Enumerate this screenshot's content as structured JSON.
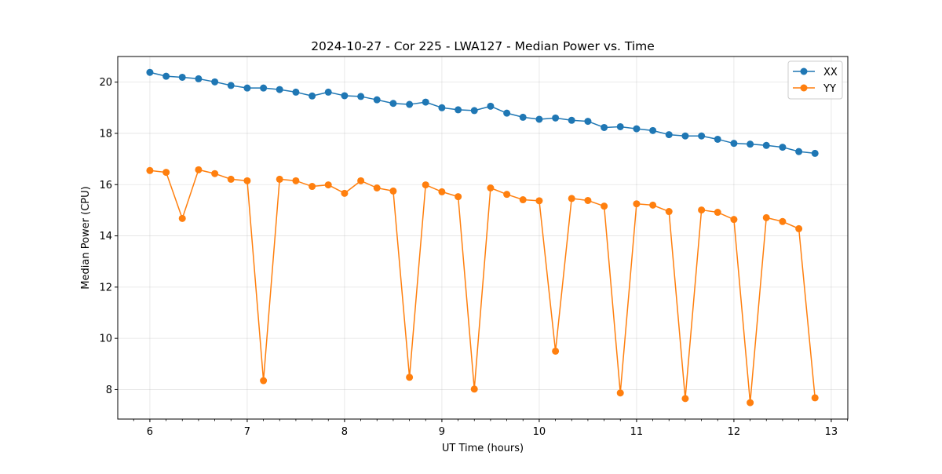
{
  "chart_data": {
    "type": "line",
    "title": "2024-10-27 - Cor 225 - LWA127 - Median Power vs. Time",
    "xlabel": "UT Time (hours)",
    "ylabel": "Median Power (CPU)",
    "xlim": [
      5.67,
      13.17
    ],
    "ylim": [
      6.85,
      21.0
    ],
    "xticks": [
      6,
      7,
      8,
      9,
      10,
      11,
      12,
      13
    ],
    "yticks": [
      8,
      10,
      12,
      14,
      16,
      18,
      20
    ],
    "grid": true,
    "legend_position": "top-right",
    "series": [
      {
        "name": "XX",
        "color": "#1f77b4",
        "x": [
          6.0,
          6.167,
          6.333,
          6.5,
          6.667,
          6.833,
          7.0,
          7.167,
          7.333,
          7.5,
          7.667,
          7.833,
          8.0,
          8.167,
          8.333,
          8.5,
          8.667,
          8.833,
          9.0,
          9.167,
          9.333,
          9.5,
          9.667,
          9.833,
          10.0,
          10.167,
          10.333,
          10.5,
          10.667,
          10.833,
          11.0,
          11.167,
          11.333,
          11.5,
          11.667,
          11.833,
          12.0,
          12.167,
          12.333,
          12.5,
          12.667,
          12.833
        ],
        "values": [
          20.38,
          20.23,
          20.19,
          20.13,
          20.01,
          19.87,
          19.77,
          19.77,
          19.71,
          19.61,
          19.46,
          19.61,
          19.47,
          19.44,
          19.31,
          19.17,
          19.13,
          19.22,
          19.0,
          18.92,
          18.89,
          19.06,
          18.79,
          18.63,
          18.55,
          18.6,
          18.51,
          18.47,
          18.23,
          18.26,
          18.18,
          18.11,
          17.95,
          17.9,
          17.9,
          17.77,
          17.61,
          17.58,
          17.53,
          17.46,
          17.29,
          17.22
        ]
      },
      {
        "name": "YY",
        "color": "#ff7f0e",
        "x": [
          6.0,
          6.167,
          6.333,
          6.5,
          6.667,
          6.833,
          7.0,
          7.167,
          7.333,
          7.5,
          7.667,
          7.833,
          8.0,
          8.167,
          8.333,
          8.5,
          8.667,
          8.833,
          9.0,
          9.167,
          9.333,
          9.5,
          9.667,
          9.833,
          10.0,
          10.167,
          10.333,
          10.5,
          10.667,
          10.833,
          11.0,
          11.167,
          11.333,
          11.5,
          11.667,
          11.833,
          12.0,
          12.167,
          12.333,
          12.5,
          12.667,
          12.833
        ],
        "values": [
          16.55,
          16.48,
          14.68,
          16.58,
          16.43,
          16.21,
          16.15,
          8.35,
          16.21,
          16.15,
          15.93,
          15.99,
          15.66,
          16.15,
          15.87,
          15.75,
          8.48,
          15.99,
          15.72,
          15.53,
          8.02,
          15.87,
          15.62,
          15.41,
          15.37,
          9.5,
          15.46,
          15.38,
          15.16,
          7.87,
          15.25,
          15.2,
          14.95,
          7.65,
          15.01,
          14.92,
          14.64,
          7.49,
          14.71,
          14.56,
          14.28,
          7.68
        ]
      }
    ]
  }
}
